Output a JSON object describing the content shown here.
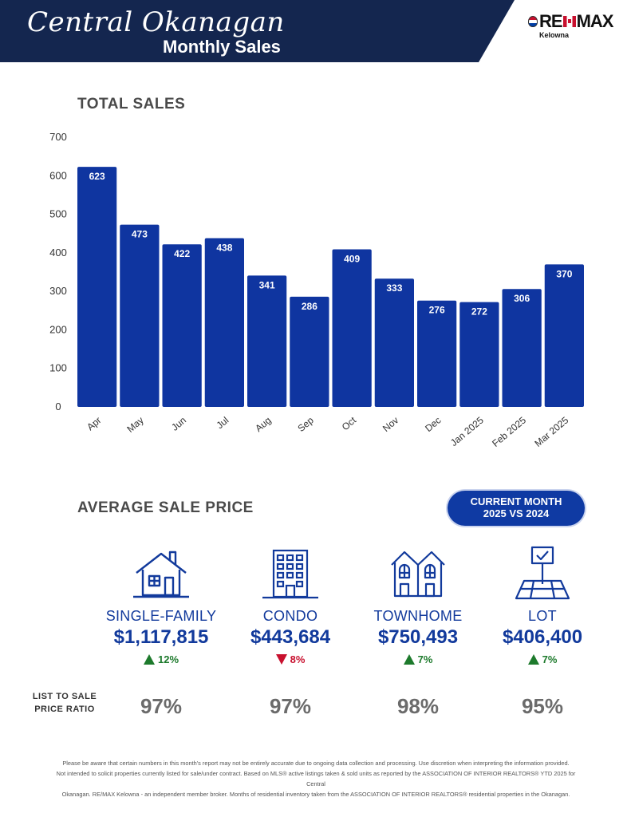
{
  "header": {
    "region": "Central Okanagan",
    "title": "Monthly Sales",
    "colors": {
      "navy": "#14264f",
      "bar": "#0f35a0"
    }
  },
  "logo": {
    "brand_left": "RE",
    "brand_right": "MAX",
    "office": "Kelowna"
  },
  "total_sales": {
    "heading": "TOTAL SALES"
  },
  "chart_data": {
    "type": "bar",
    "title": "TOTAL SALES",
    "categories": [
      "Apr",
      "May",
      "Jun",
      "Jul",
      "Aug",
      "Sep",
      "Oct",
      "Nov",
      "Dec",
      "Jan 2025",
      "Feb 2025",
      "Mar 2025"
    ],
    "values": [
      623,
      473,
      422,
      438,
      341,
      286,
      409,
      333,
      276,
      272,
      306,
      370
    ],
    "ylim": [
      0,
      700
    ],
    "yticks": [
      0,
      100,
      200,
      300,
      400,
      500,
      600,
      700
    ],
    "data_labels": true,
    "grid": false,
    "bar_color": "#0f35a0"
  },
  "average_sale_price": {
    "heading": "AVERAGE SALE PRICE",
    "badge_line1": "CURRENT MONTH",
    "badge_line2": "2025 VS 2024",
    "types": [
      {
        "icon": "house-icon",
        "label": "SINGLE-FAMILY",
        "price": "$1,117,815",
        "direction": "up",
        "change": "12%",
        "ratio": "97%"
      },
      {
        "icon": "condo-building-icon",
        "label": "CONDO",
        "price": "$443,684",
        "direction": "down",
        "change": "8%",
        "ratio": "97%"
      },
      {
        "icon": "townhome-icon",
        "label": "TOWNHOME",
        "price": "$750,493",
        "direction": "up",
        "change": "7%",
        "ratio": "98%"
      },
      {
        "icon": "lot-sign-icon",
        "label": "LOT",
        "price": "$406,400",
        "direction": "up",
        "change": "7%",
        "ratio": "95%"
      }
    ]
  },
  "ratio": {
    "label_line1": "LIST TO SALE",
    "label_line2": "PRICE RATIO"
  },
  "disclaimer": {
    "line1": "Please be aware that certain numbers in this month's report may not be entirely accurate due to ongoing data collection and processing. Use discretion when interpreting the information provided.",
    "line2": "Not intended to solicit properties currently listed for sale/under contract. Based on MLS® active listings taken & sold units as reported by the ASSOCIATION OF INTERIOR REALTORS® YTD 2025 for Central",
    "line3": "Okanagan. RE/MAX Kelowna - an independent member broker. Months of residential inventory taken from the ASSOCIATION OF INTERIOR REALTORS® residential properties in the Okanagan."
  }
}
